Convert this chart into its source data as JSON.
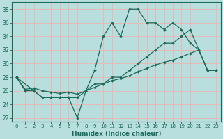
{
  "xlabel": "Humidex (Indice chaleur)",
  "background_color": "#b8dede",
  "grid_color": "#e8b8b8",
  "line_color": "#1a6b5a",
  "xlim": [
    -0.5,
    23.5
  ],
  "ylim": [
    21.5,
    39.0
  ],
  "xticks": [
    0,
    1,
    2,
    3,
    4,
    5,
    6,
    7,
    8,
    9,
    10,
    11,
    12,
    13,
    14,
    15,
    16,
    17,
    18,
    19,
    20,
    21,
    22,
    23
  ],
  "yticks": [
    22,
    24,
    26,
    28,
    30,
    32,
    34,
    36,
    38
  ],
  "line1_x": [
    0,
    1,
    2,
    3,
    4,
    5,
    6,
    7,
    8,
    9,
    10,
    11,
    12,
    13,
    14,
    15,
    16,
    17,
    18,
    19,
    20,
    21,
    22
  ],
  "line1_y": [
    28,
    26,
    26,
    25,
    25,
    25,
    25,
    22,
    26,
    29,
    34,
    36,
    34,
    38,
    38,
    36,
    36,
    35,
    36,
    35,
    33,
    32,
    29
  ],
  "line2_x": [
    0,
    3,
    4,
    5,
    6,
    7,
    8,
    9,
    10,
    11,
    12,
    13,
    14,
    15,
    16,
    17,
    18,
    19,
    20,
    22,
    23
  ],
  "line2_y": [
    28,
    25,
    25,
    25,
    25,
    25,
    26,
    27,
    27,
    28,
    28,
    29,
    30,
    31,
    32,
    33,
    33,
    34,
    35,
    29,
    29
  ],
  "line3_x": [
    0,
    1,
    2,
    3,
    4,
    5,
    6,
    7,
    8,
    9,
    10,
    11,
    12,
    13,
    14,
    15,
    16,
    17,
    18,
    19,
    20,
    21,
    22,
    23
  ],
  "line3_y": [
    28,
    26.2,
    26.4,
    26.0,
    25.8,
    25.6,
    25.8,
    25.5,
    26.0,
    26.5,
    27.0,
    27.5,
    27.8,
    28.2,
    28.8,
    29.3,
    29.8,
    30.2,
    30.5,
    31.0,
    31.5,
    32.0,
    29,
    29
  ]
}
